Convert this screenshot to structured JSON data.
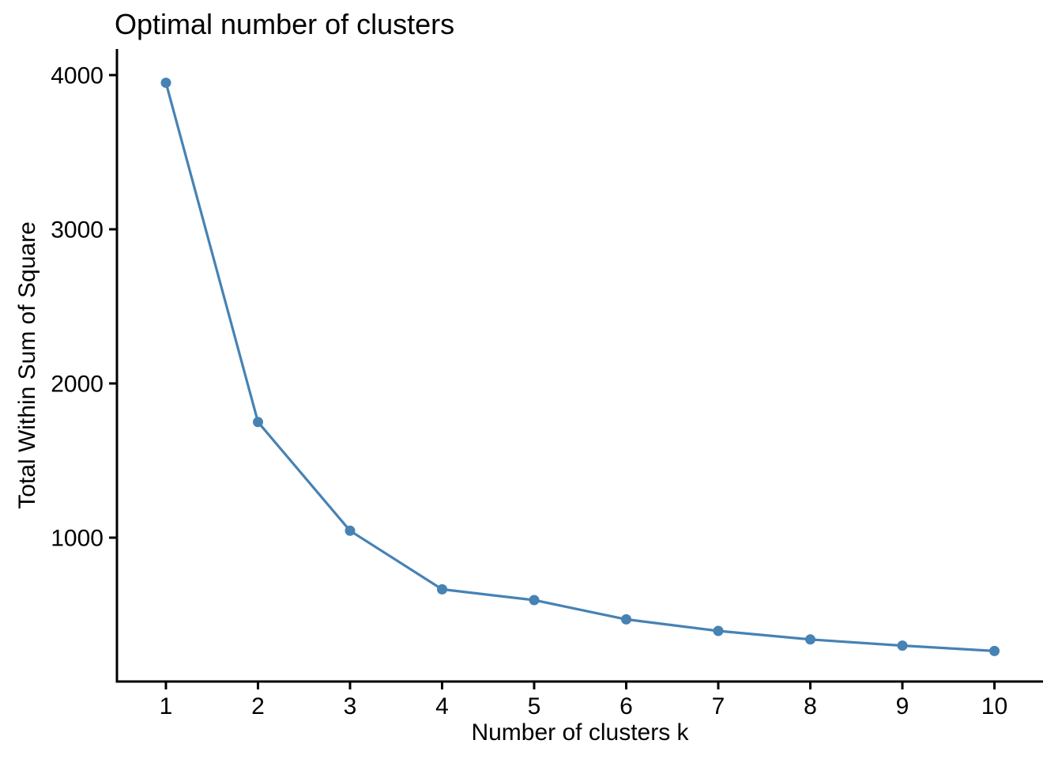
{
  "chart_data": {
    "type": "line",
    "title": "Optimal number of clusters",
    "xlabel": "Number of clusters k",
    "ylabel": "Total Within Sum of Square",
    "x": [
      1,
      2,
      3,
      4,
      5,
      6,
      7,
      8,
      9,
      10
    ],
    "y": [
      3950,
      1750,
      1045,
      665,
      595,
      470,
      395,
      340,
      300,
      265
    ],
    "x_ticks": [
      "1",
      "2",
      "3",
      "4",
      "5",
      "6",
      "7",
      "8",
      "9",
      "10"
    ],
    "x_tick_values": [
      1,
      2,
      3,
      4,
      5,
      6,
      7,
      8,
      9,
      10
    ],
    "y_ticks": [
      "1000",
      "2000",
      "3000",
      "4000"
    ],
    "y_tick_values": [
      1000,
      2000,
      3000,
      4000
    ],
    "xlim": [
      0.468,
      10.528
    ],
    "ylim": [
      67,
      4169
    ],
    "grid": false,
    "legend": null,
    "marker": "circle",
    "series_color": "#4682B4",
    "axis_color": "#000000",
    "text_color": "#000000",
    "background_color": "#ffffff"
  }
}
